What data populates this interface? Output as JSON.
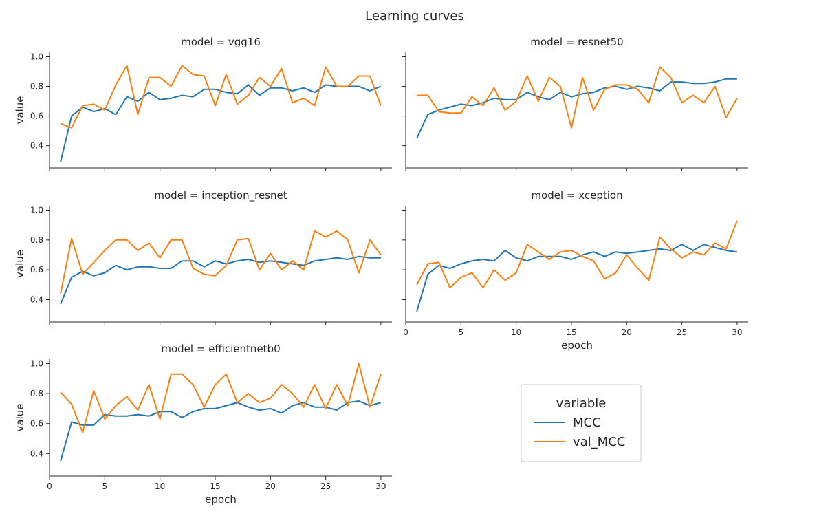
{
  "figure": {
    "title": "Learning curves"
  },
  "colors": {
    "MCC": "#1f77b4",
    "val_MCC": "#ff7f0e",
    "axis": "#262626",
    "legend_border": "#cccccc"
  },
  "legend": {
    "title": "variable",
    "entries": [
      "MCC",
      "val_MCC"
    ],
    "placement": "lower-right empty facet"
  },
  "chart_data": [
    {
      "type": "line",
      "title": "model = vgg16",
      "xlabel": "",
      "ylabel": "value",
      "xlim": [
        0,
        31
      ],
      "ylim": [
        0.25,
        1.03
      ],
      "xticks": [],
      "yticks": [
        "0.4",
        "0.6",
        "0.8",
        "1.0"
      ],
      "x": [
        1,
        2,
        3,
        4,
        5,
        6,
        7,
        8,
        9,
        10,
        11,
        12,
        13,
        14,
        15,
        16,
        17,
        18,
        19,
        20,
        21,
        22,
        23,
        24,
        25,
        26,
        27,
        28,
        29,
        30
      ],
      "series": [
        {
          "name": "MCC",
          "values": [
            0.29,
            0.6,
            0.66,
            0.63,
            0.65,
            0.61,
            0.73,
            0.7,
            0.76,
            0.71,
            0.72,
            0.74,
            0.73,
            0.78,
            0.78,
            0.76,
            0.75,
            0.81,
            0.74,
            0.79,
            0.79,
            0.77,
            0.79,
            0.76,
            0.81,
            0.8,
            0.8,
            0.8,
            0.77,
            0.8
          ]
        },
        {
          "name": "val_MCC",
          "values": [
            0.55,
            0.52,
            0.67,
            0.68,
            0.64,
            0.81,
            0.94,
            0.61,
            0.86,
            0.86,
            0.8,
            0.94,
            0.88,
            0.87,
            0.67,
            0.88,
            0.68,
            0.74,
            0.86,
            0.8,
            0.92,
            0.69,
            0.72,
            0.67,
            0.93,
            0.8,
            0.8,
            0.87,
            0.87,
            0.67
          ]
        }
      ]
    },
    {
      "type": "line",
      "title": "model = resnet50",
      "xlabel": "",
      "ylabel": "",
      "xlim": [
        0,
        31
      ],
      "ylim": [
        0.25,
        1.03
      ],
      "xticks": [],
      "yticks": [],
      "x": [
        1,
        2,
        3,
        4,
        5,
        6,
        7,
        8,
        9,
        10,
        11,
        12,
        13,
        14,
        15,
        16,
        17,
        18,
        19,
        20,
        21,
        22,
        23,
        24,
        25,
        26,
        27,
        28,
        29,
        30
      ],
      "series": [
        {
          "name": "MCC",
          "values": [
            0.45,
            0.61,
            0.64,
            0.66,
            0.68,
            0.67,
            0.69,
            0.72,
            0.71,
            0.71,
            0.76,
            0.73,
            0.71,
            0.76,
            0.73,
            0.75,
            0.76,
            0.79,
            0.8,
            0.78,
            0.8,
            0.79,
            0.77,
            0.83,
            0.83,
            0.82,
            0.82,
            0.83,
            0.85,
            0.85
          ]
        },
        {
          "name": "val_MCC",
          "values": [
            0.74,
            0.74,
            0.63,
            0.62,
            0.62,
            0.73,
            0.67,
            0.79,
            0.64,
            0.7,
            0.87,
            0.7,
            0.86,
            0.8,
            0.52,
            0.86,
            0.64,
            0.78,
            0.81,
            0.81,
            0.78,
            0.69,
            0.93,
            0.86,
            0.69,
            0.74,
            0.69,
            0.8,
            0.59,
            0.72
          ]
        }
      ]
    },
    {
      "type": "line",
      "title": "model = inception_resnet",
      "xlabel": "",
      "ylabel": "value",
      "xlim": [
        0,
        31
      ],
      "ylim": [
        0.25,
        1.03
      ],
      "xticks": [],
      "yticks": [
        "0.4",
        "0.6",
        "0.8",
        "1.0"
      ],
      "x": [
        1,
        2,
        3,
        4,
        5,
        6,
        7,
        8,
        9,
        10,
        11,
        12,
        13,
        14,
        15,
        16,
        17,
        18,
        19,
        20,
        21,
        22,
        23,
        24,
        25,
        26,
        27,
        28,
        29,
        30
      ],
      "series": [
        {
          "name": "MCC",
          "values": [
            0.37,
            0.55,
            0.59,
            0.56,
            0.58,
            0.63,
            0.6,
            0.62,
            0.62,
            0.61,
            0.61,
            0.66,
            0.66,
            0.62,
            0.66,
            0.64,
            0.66,
            0.67,
            0.65,
            0.66,
            0.65,
            0.64,
            0.63,
            0.66,
            0.67,
            0.68,
            0.67,
            0.69,
            0.68,
            0.68
          ]
        },
        {
          "name": "val_MCC",
          "values": [
            0.44,
            0.81,
            0.57,
            0.65,
            0.73,
            0.8,
            0.8,
            0.73,
            0.78,
            0.68,
            0.8,
            0.8,
            0.61,
            0.57,
            0.56,
            0.63,
            0.8,
            0.81,
            0.6,
            0.71,
            0.6,
            0.66,
            0.6,
            0.86,
            0.82,
            0.86,
            0.8,
            0.58,
            0.8,
            0.7
          ]
        }
      ]
    },
    {
      "type": "line",
      "title": "model = xception",
      "xlabel": "epoch",
      "ylabel": "",
      "xlim": [
        0,
        31
      ],
      "ylim": [
        0.25,
        1.03
      ],
      "xticks": [
        "0",
        "5",
        "10",
        "15",
        "20",
        "25",
        "30"
      ],
      "yticks": [],
      "x": [
        1,
        2,
        3,
        4,
        5,
        6,
        7,
        8,
        9,
        10,
        11,
        12,
        13,
        14,
        15,
        16,
        17,
        18,
        19,
        20,
        21,
        22,
        23,
        24,
        25,
        26,
        27,
        28,
        29,
        30
      ],
      "series": [
        {
          "name": "MCC",
          "values": [
            0.32,
            0.57,
            0.63,
            0.61,
            0.64,
            0.66,
            0.67,
            0.66,
            0.73,
            0.68,
            0.66,
            0.69,
            0.69,
            0.69,
            0.67,
            0.7,
            0.72,
            0.69,
            0.72,
            0.71,
            0.72,
            0.73,
            0.74,
            0.73,
            0.77,
            0.73,
            0.77,
            0.75,
            0.73,
            0.72
          ]
        },
        {
          "name": "val_MCC",
          "values": [
            0.5,
            0.64,
            0.65,
            0.48,
            0.55,
            0.58,
            0.48,
            0.6,
            0.53,
            0.58,
            0.77,
            0.72,
            0.67,
            0.72,
            0.73,
            0.69,
            0.66,
            0.54,
            0.58,
            0.7,
            0.61,
            0.53,
            0.82,
            0.74,
            0.68,
            0.72,
            0.7,
            0.78,
            0.74,
            0.93
          ]
        }
      ]
    },
    {
      "type": "line",
      "title": "model = efficientnetb0",
      "xlabel": "epoch",
      "ylabel": "value",
      "xlim": [
        0,
        31
      ],
      "ylim": [
        0.25,
        1.03
      ],
      "xticks": [
        "0",
        "5",
        "10",
        "15",
        "20",
        "25",
        "30"
      ],
      "yticks": [
        "0.4",
        "0.6",
        "0.8",
        "1.0"
      ],
      "x": [
        1,
        2,
        3,
        4,
        5,
        6,
        7,
        8,
        9,
        10,
        11,
        12,
        13,
        14,
        15,
        16,
        17,
        18,
        19,
        20,
        21,
        22,
        23,
        24,
        25,
        26,
        27,
        28,
        29,
        30
      ],
      "series": [
        {
          "name": "MCC",
          "values": [
            0.35,
            0.61,
            0.59,
            0.59,
            0.66,
            0.65,
            0.65,
            0.66,
            0.65,
            0.68,
            0.68,
            0.64,
            0.68,
            0.7,
            0.7,
            0.72,
            0.74,
            0.71,
            0.69,
            0.7,
            0.67,
            0.72,
            0.74,
            0.71,
            0.71,
            0.69,
            0.74,
            0.75,
            0.72,
            0.74
          ]
        },
        {
          "name": "val_MCC",
          "values": [
            0.81,
            0.73,
            0.54,
            0.82,
            0.63,
            0.72,
            0.78,
            0.69,
            0.86,
            0.63,
            0.93,
            0.93,
            0.86,
            0.71,
            0.86,
            0.93,
            0.74,
            0.8,
            0.74,
            0.77,
            0.86,
            0.8,
            0.71,
            0.86,
            0.7,
            0.86,
            0.72,
            1.0,
            0.71,
            0.93
          ]
        }
      ]
    }
  ]
}
